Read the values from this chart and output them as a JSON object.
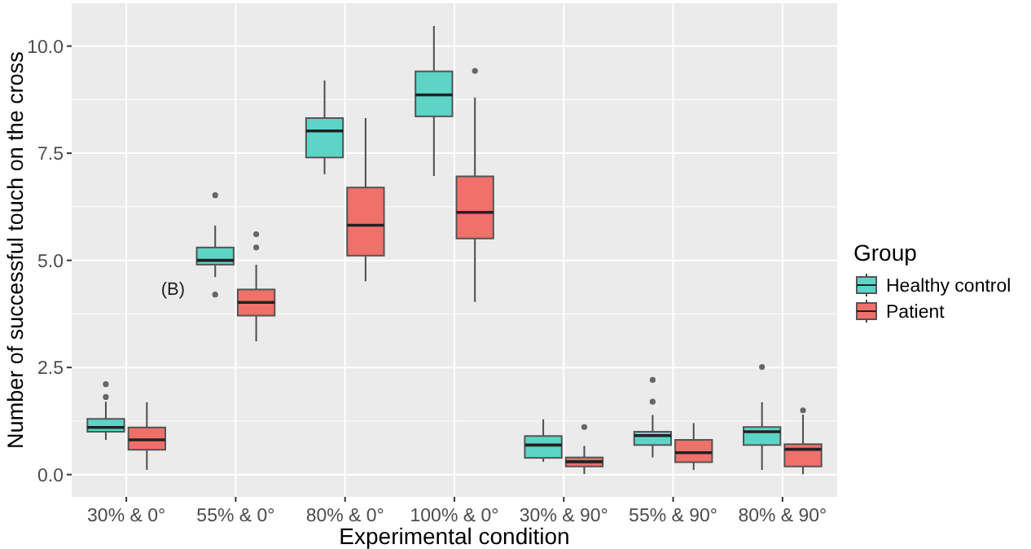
{
  "chart_data": {
    "type": "box",
    "xlabel": "Experimental condition",
    "ylabel": "Number of successful touch on the cross",
    "legend_title": "Group",
    "legend": "right",
    "grid": true,
    "categories": [
      "30% & 0°",
      "55% & 0°",
      "80% & 0°",
      "100% & 0°",
      "30% & 90°",
      "55% & 90°",
      "80% & 90°"
    ],
    "ylim": [
      -0.52,
      11
    ],
    "yticks": [
      {
        "value": 0,
        "label": "0.0"
      },
      {
        "value": 2.5,
        "label": "2.5"
      },
      {
        "value": 5,
        "label": "5.0"
      },
      {
        "value": 7.5,
        "label": "7.5"
      },
      {
        "value": 10,
        "label": "10.0"
      }
    ],
    "annotations": [
      {
        "text": "(B)",
        "x": "55% & 0°",
        "y": 4.2
      }
    ],
    "series": [
      {
        "name": "Healthy control",
        "color": "#5cd5c6",
        "boxes": [
          {
            "low": 0.81,
            "q1": 1.0,
            "median": 1.1,
            "q3": 1.3,
            "high": 1.7,
            "outliers": [
              1.81,
              2.11
            ]
          },
          {
            "low": 4.61,
            "q1": 4.9,
            "median": 5.0,
            "q3": 5.3,
            "high": 5.81,
            "outliers": [
              6.52,
              4.2
            ]
          },
          {
            "low": 7.01,
            "q1": 7.4,
            "median": 8.02,
            "q3": 8.32,
            "high": 9.2
          },
          {
            "low": 6.97,
            "q1": 8.36,
            "median": 8.86,
            "q3": 9.41,
            "high": 10.47
          },
          {
            "low": 0.3,
            "q1": 0.39,
            "median": 0.69,
            "q3": 0.9,
            "high": 1.29
          },
          {
            "low": 0.4,
            "q1": 0.69,
            "median": 0.91,
            "q3": 1.0,
            "high": 1.39,
            "outliers": [
              1.7,
              2.21
            ]
          },
          {
            "low": 0.11,
            "q1": 0.69,
            "median": 1.0,
            "q3": 1.11,
            "high": 1.69,
            "outliers": [
              2.51
            ]
          }
        ]
      },
      {
        "name": "Patient",
        "color": "#f0706a",
        "boxes": [
          {
            "low": 0.11,
            "q1": 0.58,
            "median": 0.81,
            "q3": 1.1,
            "high": 1.69
          },
          {
            "low": 3.11,
            "q1": 3.71,
            "median": 4.02,
            "q3": 4.32,
            "high": 4.9,
            "outliers": [
              5.61,
              5.3
            ]
          },
          {
            "low": 4.51,
            "q1": 5.11,
            "median": 5.82,
            "q3": 6.7,
            "high": 8.32
          },
          {
            "low": 4.03,
            "q1": 5.51,
            "median": 6.12,
            "q3": 6.96,
            "high": 8.8,
            "outliers": [
              9.42
            ]
          },
          {
            "low": 0.01,
            "q1": 0.19,
            "median": 0.3,
            "q3": 0.4,
            "high": 0.67,
            "outliers": [
              1.11
            ]
          },
          {
            "low": 0.11,
            "q1": 0.29,
            "median": 0.51,
            "q3": 0.81,
            "high": 1.2
          },
          {
            "low": 0.01,
            "q1": 0.19,
            "median": 0.59,
            "q3": 0.71,
            "high": 1.4,
            "outliers": [
              1.5
            ]
          }
        ]
      }
    ]
  }
}
